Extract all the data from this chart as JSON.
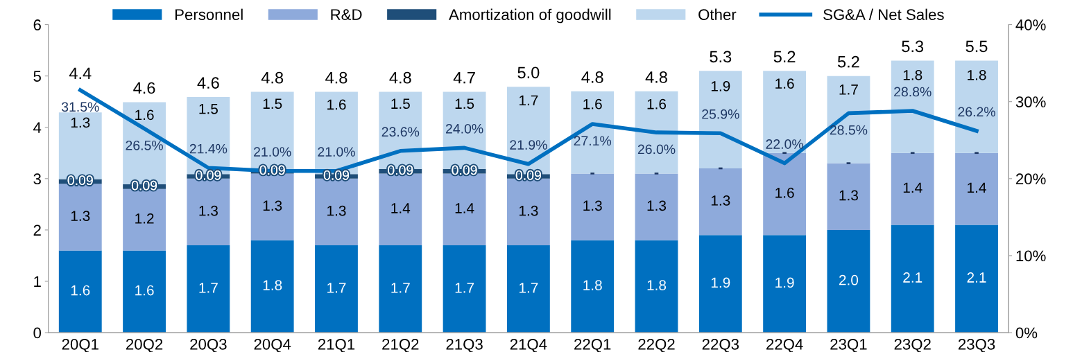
{
  "chart_data": {
    "type": "bar",
    "stacked": true,
    "categories": [
      "20Q1",
      "20Q2",
      "20Q3",
      "20Q4",
      "21Q1",
      "21Q2",
      "21Q3",
      "21Q4",
      "22Q1",
      "22Q2",
      "22Q3",
      "22Q4",
      "23Q1",
      "23Q2",
      "23Q3"
    ],
    "series": [
      {
        "name": "Personnel",
        "color": "#0070c0",
        "values": [
          1.6,
          1.6,
          1.7,
          1.8,
          1.7,
          1.7,
          1.7,
          1.7,
          1.8,
          1.8,
          1.9,
          1.9,
          2.0,
          2.1,
          2.1
        ],
        "value_labels": [
          "1.6",
          "1.6",
          "1.7",
          "1.8",
          "1.7",
          "1.7",
          "1.7",
          "1.7",
          "1.8",
          "1.8",
          "1.9",
          "1.9",
          "2.0",
          "2.1",
          "2.1"
        ]
      },
      {
        "name": "R&D",
        "color": "#8eaadb",
        "values": [
          1.3,
          1.2,
          1.3,
          1.3,
          1.3,
          1.4,
          1.4,
          1.3,
          1.3,
          1.3,
          1.3,
          1.6,
          1.3,
          1.4,
          1.4
        ],
        "value_labels": [
          "1.3",
          "1.2",
          "1.3",
          "1.3",
          "1.3",
          "1.4",
          "1.4",
          "1.3",
          "1.3",
          "1.3",
          "1.3",
          "1.6",
          "1.3",
          "1.4",
          "1.4"
        ]
      },
      {
        "name": "Amortization of goodwill",
        "color": "#1f4e79",
        "values": [
          0.09,
          0.09,
          0.09,
          0.09,
          0.09,
          0.09,
          0.09,
          0.09,
          0,
          0,
          0,
          0,
          0,
          0,
          0
        ],
        "value_labels": [
          "0.09",
          "0.09",
          "0.09",
          "0.09",
          "0.09",
          "0.09",
          "0.09",
          "0.09",
          null,
          null,
          null,
          null,
          null,
          null,
          null
        ]
      },
      {
        "name": "Other",
        "color": "#bdd7ee",
        "values": [
          1.3,
          1.6,
          1.5,
          1.5,
          1.6,
          1.5,
          1.5,
          1.7,
          1.6,
          1.6,
          1.9,
          1.6,
          1.7,
          1.8,
          1.8
        ],
        "value_labels": [
          "1.3",
          "1.6",
          "1.5",
          "1.5",
          "1.6",
          "1.5",
          "1.5",
          "1.7",
          "1.6",
          "1.6",
          "1.9",
          "1.6",
          "1.7",
          "1.8",
          "1.8"
        ]
      },
      {
        "name": "SG&A / Net Sales",
        "type": "line",
        "axis": "y2",
        "color": "#0070c0",
        "values": [
          31.5,
          26.5,
          21.4,
          21.0,
          21.0,
          23.6,
          24.0,
          21.9,
          27.1,
          26.0,
          25.9,
          22.0,
          28.5,
          28.8,
          26.2
        ],
        "value_labels": [
          "31.5%",
          "26.5%",
          "21.4%",
          "21.0%",
          "21.0%",
          "23.6%",
          "24.0%",
          "21.9%",
          "27.1%",
          "26.0%",
          "25.9%",
          "22.0%",
          "28.5%",
          "28.8%",
          "26.2%"
        ]
      }
    ],
    "annotations": [
      {
        "text": "-",
        "x": "22Q1",
        "y": 3.1
      },
      {
        "text": "-",
        "x": "22Q2",
        "y": 3.1
      },
      {
        "text": "-",
        "x": "22Q3",
        "y": 3.2
      },
      {
        "text": "-",
        "x": "22Q4",
        "y": 3.5
      },
      {
        "text": "-",
        "x": "23Q1",
        "y": 3.3
      },
      {
        "text": "-",
        "x": "23Q2",
        "y": 3.5
      },
      {
        "text": "-",
        "x": "23Q3",
        "y": 3.5
      }
    ],
    "totals": [
      "4.4",
      "4.6",
      "4.6",
      "4.8",
      "4.8",
      "4.8",
      "4.7",
      "5.0",
      "4.8",
      "4.8",
      "5.3",
      "5.2",
      "5.2",
      "5.3",
      "5.5"
    ],
    "ylim": [
      0,
      6
    ],
    "yticks": [
      0,
      1,
      2,
      3,
      4,
      5,
      6
    ],
    "y2lim": [
      0,
      40
    ],
    "y2ticks": [
      {
        "value": 0,
        "label": "0%"
      },
      {
        "value": 10,
        "label": "10%"
      },
      {
        "value": 20,
        "label": "20%"
      },
      {
        "value": 30,
        "label": "30%"
      },
      {
        "value": 40,
        "label": "40%"
      }
    ],
    "legend": "top",
    "grid": false,
    "marker": "none",
    "line_style": "solid"
  }
}
